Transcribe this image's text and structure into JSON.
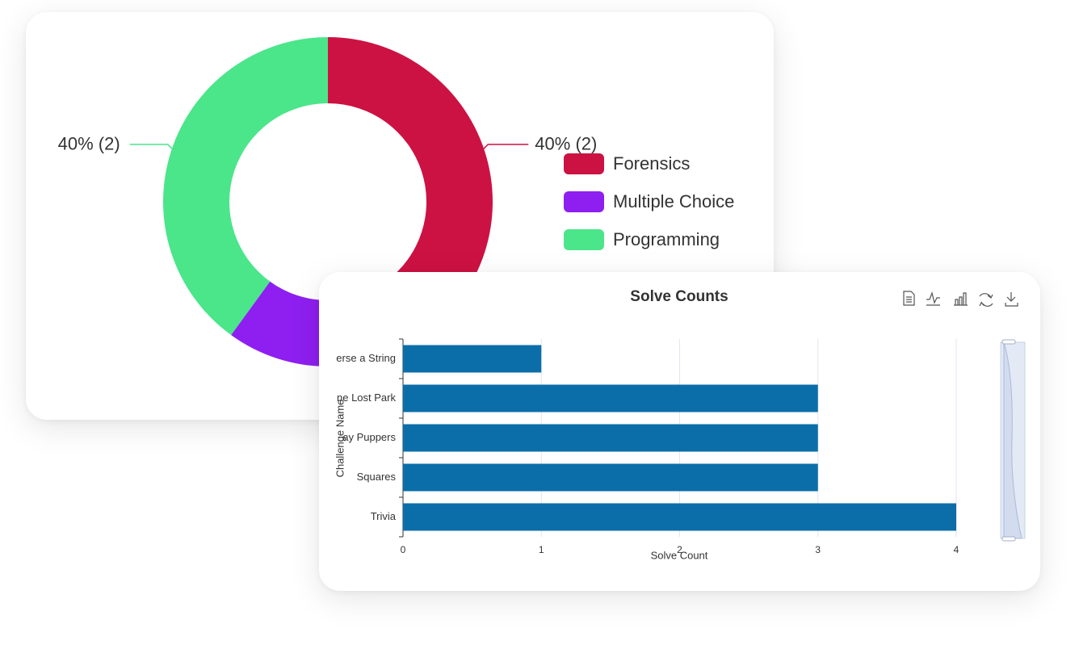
{
  "chart_data": [
    {
      "type": "pie",
      "categories": [
        "Forensics",
        "Multiple Choice",
        "Programming"
      ],
      "values": [
        2,
        1,
        2
      ],
      "value_labels": [
        "40% (2)",
        null,
        "40% (2)"
      ],
      "colors": [
        "#cc1242",
        "#8e1ff0",
        "#4be58a"
      ],
      "legend": "right"
    },
    {
      "type": "hbar",
      "title": "Solve Counts",
      "categories": [
        "erse a String",
        "ne Lost Park",
        "ay Puppers",
        "Squares",
        "Trivia"
      ],
      "values": [
        1,
        3,
        3,
        3,
        4
      ],
      "color": "#0b6ea8",
      "xlim": [
        0,
        4
      ],
      "xticks": [
        0,
        1,
        2,
        3,
        4
      ],
      "xlabel": "Solve Count",
      "ylabel": "Challenge Name",
      "grid": true
    }
  ]
}
